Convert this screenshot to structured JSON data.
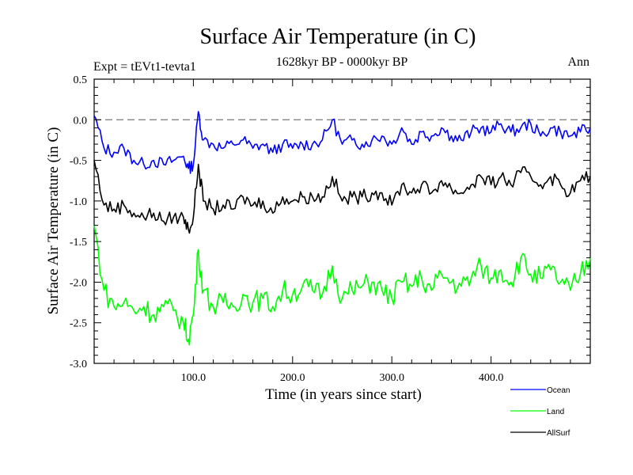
{
  "chart_data": {
    "type": "line",
    "title": "Surface Air Temperature (in C)",
    "subtitle": "1628kyr BP - 0000kyr BP",
    "experiment": "Expt = tEVt1-tevta1",
    "season": "Ann",
    "xlabel": "Time (in years since start)",
    "ylabel": "Surface Air Temperature (in C)",
    "xlim": [
      0,
      500
    ],
    "ylim": [
      -3.0,
      0.5
    ],
    "xticks": [
      100,
      200,
      300,
      400
    ],
    "xtick_labels": [
      "100.0",
      "200.0",
      "300.0",
      "400.0"
    ],
    "yticks": [
      0.5,
      0.0,
      -0.5,
      -1.0,
      -1.5,
      -2.0,
      -2.5,
      -3.0
    ],
    "ytick_labels": [
      "0.5",
      "0.0",
      "-0.5",
      "-1.0",
      "-1.5",
      "-2.0",
      "-2.5",
      "-3.0"
    ],
    "reference_line": 0.0,
    "legend": [
      "Ocean",
      "Land",
      "AllSurf"
    ],
    "series": [
      {
        "name": "Ocean",
        "color": "#0000ff",
        "x": [
          0,
          10,
          20,
          30,
          40,
          50,
          60,
          70,
          80,
          90,
          95,
          100,
          105,
          110,
          120,
          130,
          140,
          150,
          160,
          170,
          180,
          190,
          200,
          210,
          220,
          230,
          240,
          250,
          260,
          270,
          280,
          290,
          300,
          310,
          320,
          330,
          340,
          350,
          360,
          370,
          380,
          390,
          400,
          410,
          420,
          430,
          440,
          450,
          460,
          470,
          480,
          490,
          500
        ],
        "values": [
          0.05,
          -0.35,
          -0.4,
          -0.35,
          -0.5,
          -0.55,
          -0.5,
          -0.55,
          -0.5,
          -0.45,
          -0.6,
          -0.55,
          0.1,
          -0.25,
          -0.3,
          -0.35,
          -0.3,
          -0.25,
          -0.35,
          -0.3,
          -0.4,
          -0.3,
          -0.35,
          -0.3,
          -0.3,
          -0.25,
          0.0,
          -0.3,
          -0.25,
          -0.3,
          -0.25,
          -0.2,
          -0.3,
          -0.1,
          -0.3,
          -0.15,
          -0.2,
          -0.1,
          -0.2,
          -0.25,
          -0.15,
          -0.1,
          -0.15,
          -0.05,
          -0.15,
          -0.1,
          -0.05,
          -0.2,
          -0.1,
          -0.15,
          -0.2,
          -0.15,
          -0.1
        ]
      },
      {
        "name": "Land",
        "color": "#00ff00",
        "x": [
          0,
          10,
          20,
          30,
          40,
          50,
          60,
          70,
          80,
          90,
          95,
          100,
          105,
          110,
          120,
          130,
          140,
          150,
          160,
          170,
          180,
          190,
          200,
          210,
          220,
          230,
          240,
          250,
          260,
          270,
          280,
          290,
          300,
          310,
          320,
          330,
          340,
          350,
          360,
          370,
          380,
          390,
          400,
          410,
          420,
          430,
          440,
          450,
          460,
          470,
          480,
          490,
          500
        ],
        "values": [
          -1.3,
          -2.1,
          -2.3,
          -2.25,
          -2.35,
          -2.3,
          -2.4,
          -2.3,
          -2.35,
          -2.5,
          -2.7,
          -2.4,
          -1.6,
          -2.1,
          -2.3,
          -2.25,
          -2.3,
          -2.15,
          -2.25,
          -2.2,
          -2.3,
          -2.1,
          -2.15,
          -2.05,
          -2.1,
          -2.15,
          -1.8,
          -2.2,
          -2.1,
          -2.05,
          -2.0,
          -2.1,
          -2.2,
          -2.0,
          -2.05,
          -1.95,
          -2.1,
          -1.9,
          -2.0,
          -2.05,
          -1.95,
          -1.8,
          -1.95,
          -1.85,
          -2.0,
          -1.7,
          -1.9,
          -1.95,
          -1.85,
          -2.0,
          -2.1,
          -1.9,
          -1.7
        ]
      },
      {
        "name": "AllSurf",
        "color": "#000000",
        "x": [
          0,
          10,
          20,
          30,
          40,
          50,
          60,
          70,
          80,
          90,
          95,
          100,
          105,
          110,
          120,
          130,
          140,
          150,
          160,
          170,
          180,
          190,
          200,
          210,
          220,
          230,
          240,
          250,
          260,
          270,
          280,
          290,
          300,
          310,
          320,
          330,
          340,
          350,
          360,
          370,
          380,
          390,
          400,
          410,
          420,
          430,
          440,
          450,
          460,
          470,
          480,
          490,
          500
        ],
        "values": [
          -0.5,
          -1.05,
          -1.1,
          -1.05,
          -1.15,
          -1.2,
          -1.15,
          -1.25,
          -1.2,
          -1.2,
          -1.35,
          -1.2,
          -0.55,
          -1.0,
          -1.1,
          -1.05,
          -1.1,
          -0.95,
          -1.05,
          -1.0,
          -1.15,
          -0.95,
          -1.0,
          -0.95,
          -0.95,
          -0.95,
          -0.7,
          -1.0,
          -0.95,
          -0.95,
          -0.9,
          -0.9,
          -1.05,
          -0.8,
          -0.9,
          -0.8,
          -0.9,
          -0.75,
          -0.85,
          -0.9,
          -0.8,
          -0.7,
          -0.8,
          -0.7,
          -0.8,
          -0.65,
          -0.7,
          -0.8,
          -0.7,
          -0.8,
          -0.9,
          -0.75,
          -0.7
        ]
      }
    ]
  }
}
